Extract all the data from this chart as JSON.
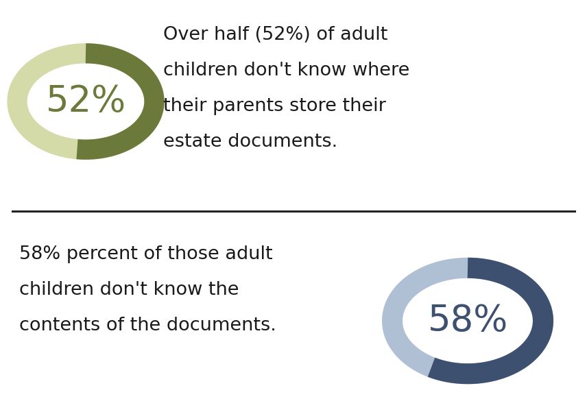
{
  "background_color": "#ffffff",
  "stat1_value": 52,
  "stat1_label": "52%",
  "stat1_text_line1": "Over half (52%) of adult",
  "stat1_text_line2": "children don't know where",
  "stat1_text_line3": "their parents store their",
  "stat1_text_line4": "estate documents.",
  "stat1_color_main": "#6b7a3a",
  "stat1_color_light": "#d4dba8",
  "stat1_label_color": "#6b7a3a",
  "stat2_value": 58,
  "stat2_label": "58%",
  "stat2_text_line1": "58% percent of those adult",
  "stat2_text_line2": "children don't know the",
  "stat2_text_line3": "contents of the documents.",
  "stat2_color_main": "#3d5070",
  "stat2_color_light": "#b0c0d4",
  "stat2_label_color": "#3d5070",
  "divider_color": "#222222",
  "text_color": "#1a1a1a",
  "text_fontsize": 19.5,
  "label_fontsize": 38
}
